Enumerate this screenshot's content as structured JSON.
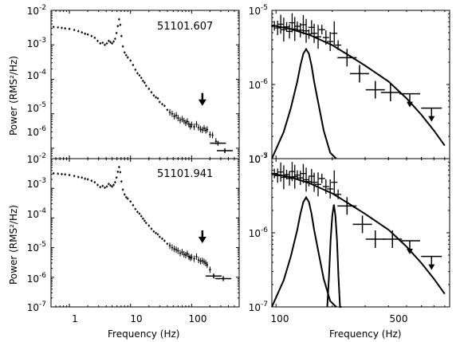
{
  "chart_data": [
    {
      "type": "scatter",
      "panel": "top-left",
      "annotation": "51101.607",
      "xscale": "log",
      "yscale": "log",
      "xlim": [
        0.5,
        600
      ],
      "ylim": [
        5e-07,
        0.01
      ],
      "yticks": [
        "10^-6",
        "10^-5",
        "10^-4",
        "10^-3",
        "10^-2"
      ],
      "series": [
        {
          "role": "power-spectrum",
          "x": [
            0.55,
            0.65,
            0.75,
            0.85,
            1.0,
            1.2,
            1.4,
            1.6,
            1.8,
            2.0,
            2.3,
            2.6,
            2.9,
            3.2,
            3.5,
            3.8,
            4.1,
            4.4,
            4.7,
            5.0,
            5.3,
            5.6,
            5.9,
            6.2,
            6.5,
            6.8,
            7.1,
            7.5,
            8.0,
            8.5,
            9.0,
            10,
            11,
            12,
            13,
            14,
            15,
            16,
            17,
            18,
            20,
            22,
            24,
            26,
            28,
            30,
            33,
            36,
            40,
            44,
            48,
            52,
            56,
            60,
            65,
            70,
            75,
            80,
            85,
            90,
            95,
            100,
            110,
            120,
            130,
            140,
            150,
            160,
            170,
            180,
            200,
            220,
            250
          ],
          "y": [
            0.0033,
            0.0032,
            0.0031,
            0.003,
            0.0029,
            0.0027,
            0.0025,
            0.0023,
            0.0021,
            0.002,
            0.0018,
            0.0016,
            0.0013,
            0.0011,
            0.00115,
            0.001,
            0.0011,
            0.0013,
            0.0012,
            0.0011,
            0.00125,
            0.0015,
            0.0022,
            0.0035,
            0.0055,
            0.0038,
            0.0018,
            0.0009,
            0.0006,
            0.0005,
            0.00043,
            0.00035,
            0.00026,
            0.00019,
            0.00015,
            0.00013,
            0.00011,
            9e-05,
            8e-05,
            6.5e-05,
            5.3e-05,
            4.2e-05,
            3.4e-05,
            3e-05,
            2.8e-05,
            2.2e-05,
            1.9e-05,
            1.7e-05,
            1.3e-05,
            1.1e-05,
            1e-05,
            8.5e-06,
            9e-06,
            7.5e-06,
            6.5e-06,
            7e-06,
            6.2e-06,
            5.5e-06,
            6e-06,
            5e-06,
            4.3e-06,
            4.8e-06,
            4.2e-06,
            5e-06,
            4e-06,
            3.6e-06,
            3.4e-06,
            3.8e-06,
            3.3e-06,
            3.5e-06,
            2.5e-06,
            2.4e-06,
            1.6e-06
          ]
        },
        {
          "role": "bins",
          "x": [
            270,
            350
          ],
          "y": [
            1.4e-06,
            8.5e-07
          ]
        }
      ],
      "upper_limit_arrow": {
        "x": 150,
        "y": 4e-05
      }
    },
    {
      "type": "scatter",
      "panel": "bottom-left",
      "annotation": "51101.941",
      "xscale": "log",
      "yscale": "log",
      "xlim": [
        0.5,
        600
      ],
      "ylim": [
        1e-07,
        0.01
      ],
      "xticks": [
        "1",
        "10",
        "100"
      ],
      "yticks": [
        "10^-7",
        "10^-6",
        "10^-5",
        "10^-4",
        "10^-3",
        "10^-2"
      ],
      "series": [
        {
          "role": "power-spectrum",
          "x": [
            0.55,
            0.65,
            0.75,
            0.85,
            1.0,
            1.2,
            1.4,
            1.6,
            1.8,
            2.0,
            2.3,
            2.6,
            2.9,
            3.2,
            3.5,
            3.8,
            4.1,
            4.4,
            4.7,
            5.0,
            5.3,
            5.6,
            5.9,
            6.2,
            6.5,
            6.8,
            7.1,
            7.5,
            8.0,
            8.5,
            9.0,
            10,
            11,
            12,
            13,
            14,
            15,
            16,
            17,
            18,
            20,
            22,
            24,
            26,
            28,
            30,
            33,
            36,
            40,
            44,
            48,
            52,
            56,
            60,
            65,
            70,
            75,
            80,
            85,
            90,
            95,
            100,
            110,
            120,
            130,
            140,
            150,
            160,
            170,
            180,
            200
          ],
          "y": [
            0.0032,
            0.0031,
            0.003,
            0.00295,
            0.0028,
            0.0026,
            0.0024,
            0.0023,
            0.0021,
            0.002,
            0.0018,
            0.0016,
            0.0013,
            0.0011,
            0.0012,
            0.00105,
            0.00115,
            0.0014,
            0.00125,
            0.00115,
            0.0013,
            0.0016,
            0.0023,
            0.0036,
            0.0052,
            0.0035,
            0.0017,
            0.0009,
            0.00062,
            0.0005,
            0.00045,
            0.00036,
            0.00027,
            0.0002,
            0.00016,
            0.00014,
            0.000115,
            9.5e-05,
            8e-05,
            6.8e-05,
            5.5e-05,
            4.3e-05,
            3.5e-05,
            3.1e-05,
            2.8e-05,
            2.3e-05,
            2e-05,
            1.7e-05,
            1.35e-05,
            1.15e-05,
            1e-05,
            9e-06,
            8.5e-06,
            7.8e-06,
            6.5e-06,
            7e-06,
            6e-06,
            5.6e-06,
            6.2e-06,
            5e-06,
            4.5e-06,
            4.8e-06,
            4.2e-06,
            5e-06,
            3.8e-06,
            3.5e-06,
            3.6e-06,
            3.3e-06,
            3e-06,
            2.6e-06,
            1.8e-06
          ]
        },
        {
          "role": "bins",
          "x": [
            230,
            330
          ],
          "y": [
            1.1e-06,
            9e-07
          ]
        }
      ],
      "upper_limit_arrow": {
        "x": 150,
        "y": 3.8e-05
      }
    },
    {
      "type": "line",
      "panel": "top-right",
      "xscale": "log",
      "yscale": "log",
      "xlim": [
        95,
        850
      ],
      "ylim": [
        1e-07,
        1e-05
      ],
      "series": [
        {
          "role": "data",
          "x": [
            98,
            102,
            106,
            110,
            114,
            118,
            122,
            126,
            130,
            135,
            140,
            145,
            150,
            155,
            160,
            168,
            176,
            185,
            195,
            205,
            215
          ],
          "y": [
            6.2e-06,
            5.8e-06,
            6.5e-06,
            5.5e-06,
            6e-06,
            5.2e-06,
            6.8e-06,
            5.6e-06,
            6.1e-06,
            5.4e-06,
            6.4e-06,
            5.3e-06,
            4.8e-06,
            5.9e-06,
            4.9e-06,
            4.4e-06,
            5.5e-06,
            4.3e-06,
            3.8e-06,
            4.9e-06,
            3.4e-06
          ]
        },
        {
          "role": "bins",
          "x": [
            240,
            280,
            340,
            410
          ],
          "y": [
            2.3e-06,
            1.4e-06,
            8.5e-07,
            7.8e-07
          ]
        },
        {
          "role": "upper-limits",
          "x": [
            520,
            680
          ],
          "y": [
            7.5e-07,
            4.8e-07
          ]
        },
        {
          "role": "model",
          "x": [
            95,
            120,
            150,
            200,
            250,
            300,
            400,
            500,
            600,
            700,
            800
          ],
          "y": [
            6.3e-06,
            5.6e-06,
            4.7e-06,
            3.4e-06,
            2.4e-06,
            1.8e-06,
            1.1e-06,
            6.5e-07,
            3.9e-07,
            2.4e-07,
            1.5e-07
          ]
        },
        {
          "role": "lorentzian",
          "x": [
            95,
            110,
            120,
            130,
            135,
            140,
            145,
            150,
            155,
            160,
            170,
            180,
            195,
            210
          ],
          "y": [
            1e-07,
            2.3e-07,
            4.8e-07,
            1.1e-06,
            1.8e-06,
            2.6e-06,
            3e-06,
            2.6e-06,
            1.8e-06,
            1.1e-06,
            5e-07,
            2.4e-07,
            1.2e-07,
            1e-07
          ]
        }
      ]
    },
    {
      "type": "line",
      "panel": "bottom-right",
      "xscale": "log",
      "yscale": "log",
      "xlim": [
        95,
        850
      ],
      "ylim": [
        1e-07,
        1e-05
      ],
      "xticks": [
        "100",
        "500"
      ],
      "yticks": [
        "10^-7",
        "10^-6",
        "10^-5"
      ],
      "series": [
        {
          "role": "data",
          "x": [
            98,
            102,
            106,
            110,
            114,
            118,
            122,
            126,
            130,
            135,
            140,
            145,
            150,
            155,
            160,
            168,
            176,
            185,
            195,
            205,
            215
          ],
          "y": [
            6.3e-06,
            5.9e-06,
            6.6e-06,
            5.6e-06,
            6.1e-06,
            5.4e-06,
            6.7e-06,
            5.7e-06,
            6e-06,
            5.5e-06,
            6.3e-06,
            5.2e-06,
            4.9e-06,
            5.8e-06,
            4.8e-06,
            4.5e-06,
            5.4e-06,
            4.2e-06,
            3.9e-06,
            4.8e-06,
            3.3e-06
          ]
        },
        {
          "role": "bins",
          "x": [
            240,
            290,
            340,
            420
          ],
          "y": [
            2.3e-06,
            1.3e-06,
            8.2e-07,
            8.2e-07
          ]
        },
        {
          "role": "upper-limits",
          "x": [
            520,
            680
          ],
          "y": [
            7.8e-07,
            4.8e-07
          ]
        },
        {
          "role": "model",
          "x": [
            95,
            120,
            150,
            200,
            250,
            300,
            400,
            500,
            600,
            700,
            800
          ],
          "y": [
            6.3e-06,
            5.6e-06,
            4.7e-06,
            3.4e-06,
            2.4e-06,
            1.8e-06,
            1.1e-06,
            6.5e-07,
            3.9e-07,
            2.4e-07,
            1.5e-07
          ]
        },
        {
          "role": "lorentzian",
          "x": [
            95,
            110,
            120,
            130,
            135,
            140,
            145,
            150,
            155,
            160,
            170,
            180,
            195,
            210
          ],
          "y": [
            1e-07,
            2.3e-07,
            4.8e-07,
            1.1e-06,
            1.8e-06,
            2.6e-06,
            3e-06,
            2.6e-06,
            1.8e-06,
            1.1e-06,
            5e-07,
            2.4e-07,
            1.2e-07,
            1e-07
          ]
        },
        {
          "role": "lorentzian-2",
          "x": [
            188,
            192,
            196,
            200,
            204,
            208,
            212,
            216,
            220,
            224
          ],
          "y": [
            1e-07,
            2.5e-07,
            8e-07,
            1.7e-06,
            2.4e-06,
            1.7e-06,
            8e-07,
            2.5e-07,
            1e-07,
            1e-07
          ]
        }
      ]
    }
  ],
  "labels": {
    "ylabel_top": "Power (RMS²/Hz)",
    "ylabel_bottom": "Power (RMS²/Hz)",
    "xlabel_left": "Frequency (Hz)",
    "xlabel_right": "Frequency (Hz)",
    "tick_10_mant": "10",
    "tick_10_exp_m2": "-2",
    "tick_10_exp_m3": "-3",
    "tick_10_exp_m4": "-4",
    "tick_10_exp_m5": "-5",
    "tick_10_exp_m6": "-6",
    "tick_10_exp_m7": "-7",
    "xtick_1": "1",
    "xtick_10": "10",
    "xtick_100": "100",
    "xtick_r100": "100",
    "xtick_r500": "500"
  }
}
